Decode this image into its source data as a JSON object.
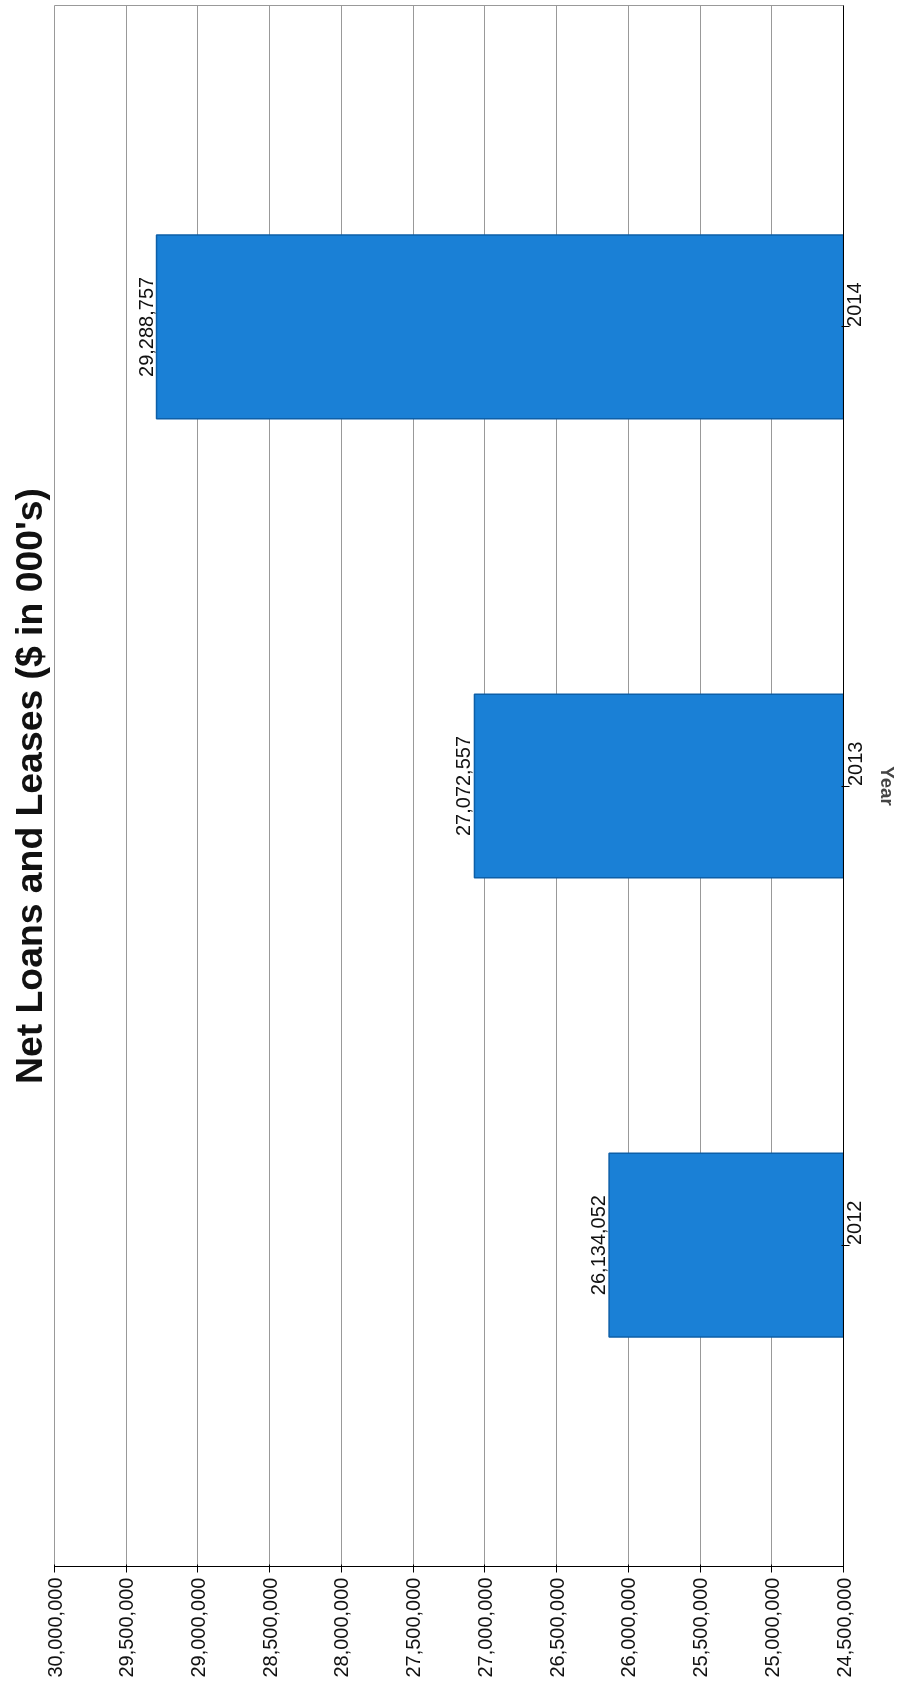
{
  "chart_data": {
    "type": "bar",
    "orientation": "horizontal",
    "title": "Net Loans and Leases ($ in 000's)",
    "ylabel": "Year",
    "categories": [
      "2014",
      "2013",
      "2012"
    ],
    "values": [
      29288757,
      27072557,
      26134052
    ],
    "value_labels": [
      "29,288,757",
      "27,072,557",
      "26,134,052"
    ],
    "color": "#1a80d6",
    "xlim": [
      30000000,
      24500000
    ],
    "xticks": [
      {
        "value": 30000000,
        "label": "30,000,000"
      },
      {
        "value": 29500000,
        "label": "29,500,000"
      },
      {
        "value": 29000000,
        "label": "29,000,000"
      },
      {
        "value": 28500000,
        "label": "28,500,000"
      },
      {
        "value": 28000000,
        "label": "28,000,000"
      },
      {
        "value": 27500000,
        "label": "27,500,000"
      },
      {
        "value": 27000000,
        "label": "27,000,000"
      },
      {
        "value": 26500000,
        "label": "26,500,000"
      },
      {
        "value": 26000000,
        "label": "26,000,000"
      },
      {
        "value": 25500000,
        "label": "25,500,000"
      },
      {
        "value": 25000000,
        "label": "25,000,000"
      },
      {
        "value": 24500000,
        "label": "24,500,000"
      }
    ],
    "grid": "x"
  }
}
